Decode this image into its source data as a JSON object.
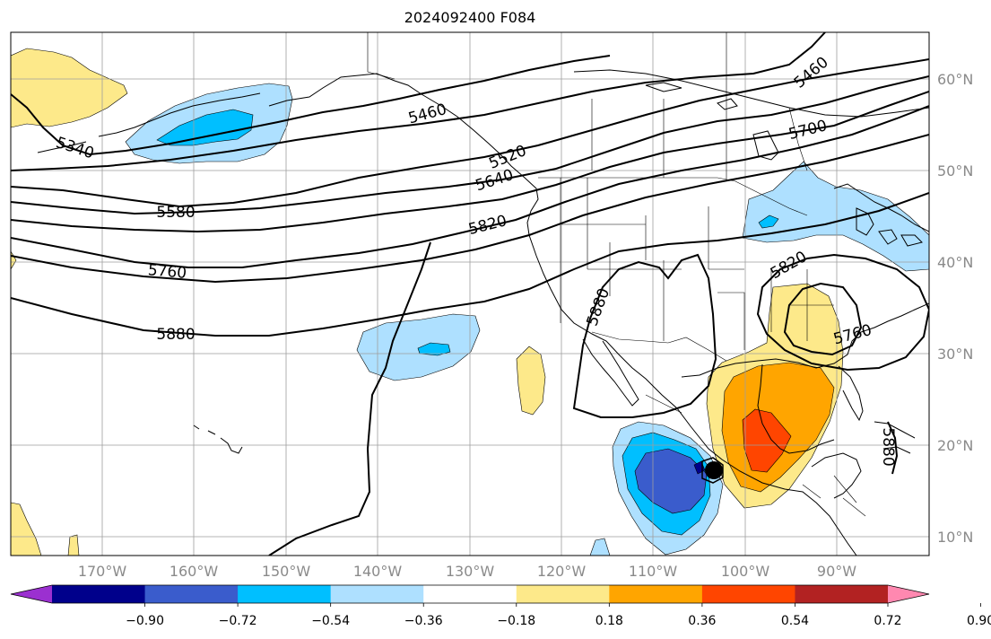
{
  "title": "2024092400 F084",
  "lat_labels": [
    "60°N",
    "50°N",
    "40°N",
    "30°N",
    "20°N",
    "10°N"
  ],
  "lon_labels": [
    "170°W",
    "160°W",
    "150°W",
    "140°W",
    "130°W",
    "120°W",
    "110°W",
    "100°W",
    "90°W"
  ],
  "colorbar": {
    "colors": [
      "#9b30d0",
      "#00008b",
      "#3a5ccc",
      "#00bfff",
      "#aee0ff",
      "#ffffff",
      "#fde98a",
      "#ffa500",
      "#ff4500",
      "#b22222",
      "#ff88b0"
    ],
    "tick_labels": [
      "−0.90",
      "−0.72",
      "−0.54",
      "−0.36",
      "−0.18",
      "0.18",
      "0.36",
      "0.54",
      "0.72",
      "0.90"
    ]
  },
  "contour_labels": [
    "5340",
    "5460",
    "5460",
    "5520",
    "5580",
    "5640",
    "5700",
    "5760",
    "5760",
    "5820",
    "5820",
    "5880",
    "5880",
    "5880"
  ],
  "map": {
    "projection": "cylindrical",
    "lon_range": [
      -180,
      -80
    ],
    "lat_range": [
      8,
      65
    ],
    "gridlines": true,
    "features": [
      "coastlines",
      "country borders",
      "US state borders",
      "Canadian province borders"
    ],
    "contour_field": "500 hPa geopotential height",
    "shaded_field": "anomaly"
  }
}
